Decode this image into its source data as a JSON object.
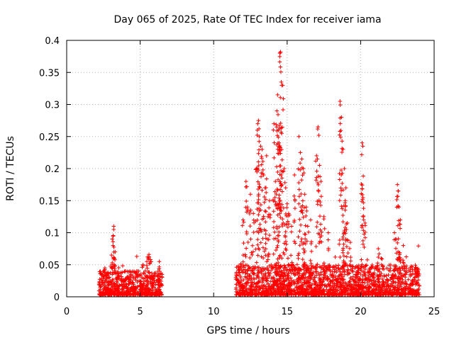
{
  "chart_data": {
    "type": "scatter",
    "title": "Day 065 of 2025, Rate Of TEC Index for receiver iama",
    "xlabel": "GPS time / hours",
    "ylabel": "ROTI / TECUs",
    "xlim": [
      0,
      25
    ],
    "ylim": [
      0,
      0.4
    ],
    "xticks": [
      0,
      5,
      10,
      15,
      20,
      25
    ],
    "yticks": [
      0,
      0.05,
      0.1,
      0.15,
      0.2,
      0.25,
      0.3,
      0.35,
      0.4
    ],
    "xtick_labels": [
      "0",
      "5",
      "10",
      "15",
      "20",
      "25"
    ],
    "ytick_labels": [
      "0",
      "0.05",
      "0.1",
      "0.15",
      "0.2",
      "0.25",
      "0.3",
      "0.35",
      "0.4"
    ],
    "grid": true,
    "marker": "+",
    "color": "#ff0000",
    "series": [
      {
        "name": "ROTI",
        "segments": [
          {
            "x_start": 2.2,
            "x_end": 6.5,
            "baseline": 0.012,
            "typical_max": 0.04
          },
          {
            "x_start": 11.5,
            "x_end": 24.0,
            "baseline": 0.012,
            "typical_max": 0.05
          }
        ],
        "points": [
          [
            3.2,
            0.11
          ],
          [
            3.2,
            0.105
          ],
          [
            3.1,
            0.09
          ],
          [
            3.15,
            0.08
          ],
          [
            3.3,
            0.07
          ],
          [
            3.05,
            0.065
          ],
          [
            3.25,
            0.06
          ],
          [
            2.6,
            0.045
          ],
          [
            4.0,
            0.04
          ],
          [
            5.6,
            0.066
          ],
          [
            5.5,
            0.062
          ],
          [
            5.7,
            0.058
          ],
          [
            5.2,
            0.05
          ],
          [
            6.3,
            0.055
          ],
          [
            12.2,
            0.18
          ],
          [
            12.5,
            0.16
          ],
          [
            12.3,
            0.14
          ],
          [
            12.0,
            0.12
          ],
          [
            12.7,
            0.13
          ],
          [
            12.9,
            0.2
          ],
          [
            13.0,
            0.27
          ],
          [
            13.05,
            0.275
          ],
          [
            13.1,
            0.25
          ],
          [
            13.2,
            0.235
          ],
          [
            13.3,
            0.23
          ],
          [
            13.4,
            0.19
          ],
          [
            13.5,
            0.17
          ],
          [
            13.6,
            0.22
          ],
          [
            13.8,
            0.15
          ],
          [
            13.7,
            0.125
          ],
          [
            14.1,
            0.27
          ],
          [
            14.3,
            0.29
          ],
          [
            14.35,
            0.315
          ],
          [
            14.5,
            0.38
          ],
          [
            14.55,
            0.382
          ],
          [
            14.6,
            0.335
          ],
          [
            14.7,
            0.33
          ],
          [
            14.4,
            0.26
          ],
          [
            14.45,
            0.24
          ],
          [
            14.2,
            0.18
          ],
          [
            14.8,
            0.2
          ],
          [
            14.9,
            0.17
          ],
          [
            15.0,
            0.145
          ],
          [
            15.1,
            0.13
          ],
          [
            15.3,
            0.11
          ],
          [
            15.5,
            0.19
          ],
          [
            15.8,
            0.25
          ],
          [
            15.9,
            0.225
          ],
          [
            16.0,
            0.215
          ],
          [
            16.1,
            0.2
          ],
          [
            16.2,
            0.16
          ],
          [
            16.3,
            0.14
          ],
          [
            16.4,
            0.11
          ],
          [
            16.6,
            0.12
          ],
          [
            17.0,
            0.22
          ],
          [
            17.1,
            0.265
          ],
          [
            17.2,
            0.205
          ],
          [
            17.3,
            0.18
          ],
          [
            17.5,
            0.125
          ],
          [
            17.8,
            0.1
          ],
          [
            18.6,
            0.305
          ],
          [
            18.7,
            0.28
          ],
          [
            18.8,
            0.23
          ],
          [
            18.9,
            0.2
          ],
          [
            19.0,
            0.17
          ],
          [
            18.95,
            0.15
          ],
          [
            19.1,
            0.115
          ],
          [
            18.8,
            0.09
          ],
          [
            19.3,
            0.085
          ],
          [
            20.1,
            0.24
          ],
          [
            20.15,
            0.235
          ],
          [
            20.2,
            0.138
          ],
          [
            20.3,
            0.115
          ],
          [
            21.2,
            0.075
          ],
          [
            21.4,
            0.06
          ],
          [
            22.3,
            0.1
          ],
          [
            22.4,
            0.09
          ],
          [
            22.5,
            0.175
          ],
          [
            22.55,
            0.165
          ],
          [
            22.6,
            0.14
          ],
          [
            22.7,
            0.12
          ],
          [
            22.9,
            0.08
          ]
        ]
      }
    ]
  }
}
